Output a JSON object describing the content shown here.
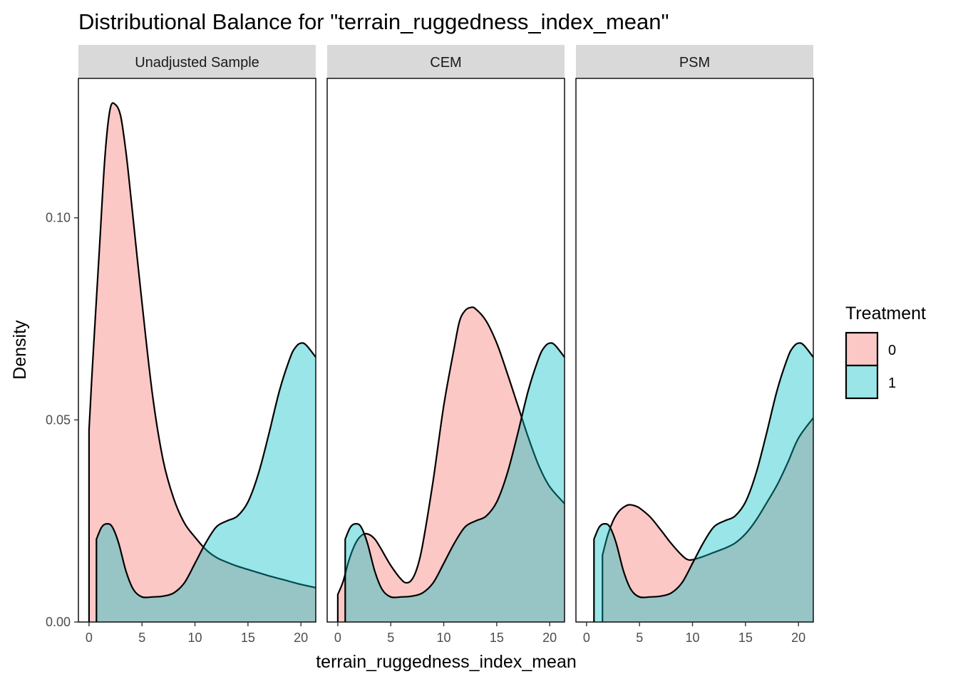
{
  "chart_data": {
    "type": "area",
    "subtype": "density",
    "title": "Distributional Balance for \"terrain_ruggedness_index_mean\"",
    "xlabel": "terrain_ruggedness_index_mean",
    "ylabel": "Density",
    "xlim": [
      -1,
      21.4
    ],
    "ylim": [
      0,
      0.1345
    ],
    "x_ticks": [
      0,
      5,
      10,
      15,
      20
    ],
    "x_tick_labels": [
      "0",
      "5",
      "10",
      "15",
      "20"
    ],
    "y_ticks": [
      0,
      0.05,
      0.1
    ],
    "y_tick_labels": [
      "0.00",
      "0.05",
      "0.10"
    ],
    "grid": false,
    "legend": {
      "title": "Treatment",
      "position": "right",
      "entries": [
        {
          "label": "0",
          "color": "#F8766D"
        },
        {
          "label": "1",
          "color": "#00BFC4"
        }
      ]
    },
    "fill_opacity": 0.4,
    "facets": [
      {
        "label": "Unadjusted Sample",
        "series": [
          {
            "name": "0",
            "color": "#F8766D",
            "x": [
              0,
              0.3,
              0.7,
              1.0,
              1.5,
              2.0,
              2.5,
              3.0,
              3.5,
              4.0,
              5.0,
              6.0,
              7.0,
              8.0,
              9.0,
              10.0,
              11.0,
              12.0,
              13.0,
              14.0,
              15.0,
              16.0,
              17.0,
              18.0,
              19.0,
              20.0,
              21.4
            ],
            "y": [
              0.0475,
              0.062,
              0.08,
              0.093,
              0.115,
              0.127,
              0.128,
              0.125,
              0.116,
              0.104,
              0.079,
              0.056,
              0.04,
              0.0305,
              0.0245,
              0.021,
              0.018,
              0.016,
              0.0148,
              0.0138,
              0.013,
              0.0122,
              0.0114,
              0.0107,
              0.01,
              0.0093,
              0.0085
            ]
          },
          {
            "name": "1",
            "color": "#00BFC4",
            "x": [
              0.7,
              1.2,
              1.7,
              2.2,
              2.8,
              3.5,
              4.2,
              5.0,
              6.0,
              7.0,
              8.0,
              9.0,
              10.0,
              11.0,
              12.0,
              13.0,
              14.0,
              15.0,
              16.0,
              17.0,
              18.0,
              19.0,
              19.5,
              20.0,
              20.5,
              21.4
            ],
            "y": [
              0.0205,
              0.0235,
              0.0243,
              0.0235,
              0.0195,
              0.0125,
              0.008,
              0.0062,
              0.0062,
              0.0064,
              0.0072,
              0.0097,
              0.0145,
              0.0195,
              0.0235,
              0.025,
              0.0262,
              0.0297,
              0.0368,
              0.0468,
              0.0575,
              0.0655,
              0.068,
              0.069,
              0.0685,
              0.0655
            ]
          }
        ]
      },
      {
        "label": "CEM",
        "series": [
          {
            "name": "0",
            "color": "#F8766D",
            "x": [
              0,
              0.5,
              1.0,
              1.5,
              2.0,
              2.5,
              3.0,
              3.5,
              4.0,
              5.0,
              6.0,
              6.5,
              7.0,
              7.5,
              8.0,
              9.0,
              10.0,
              11.0,
              11.5,
              12.0,
              12.5,
              13.0,
              14.0,
              15.0,
              16.0,
              17.0,
              18.0,
              19.0,
              20.0,
              21.4
            ],
            "y": [
              0.0068,
              0.01,
              0.0148,
              0.0185,
              0.0208,
              0.0218,
              0.0216,
              0.0205,
              0.0185,
              0.014,
              0.0105,
              0.0097,
              0.0105,
              0.0135,
              0.019,
              0.035,
              0.0535,
              0.068,
              0.0745,
              0.077,
              0.0778,
              0.0775,
              0.0745,
              0.069,
              0.0615,
              0.0535,
              0.0455,
              0.0385,
              0.0335,
              0.0293
            ]
          },
          {
            "name": "1",
            "color": "#00BFC4",
            "x": [
              0.7,
              1.2,
              1.7,
              2.2,
              2.8,
              3.5,
              4.2,
              5.0,
              6.0,
              7.0,
              8.0,
              9.0,
              10.0,
              11.0,
              12.0,
              13.0,
              14.0,
              15.0,
              16.0,
              17.0,
              18.0,
              19.0,
              19.5,
              20.0,
              20.5,
              21.4
            ],
            "y": [
              0.0205,
              0.0235,
              0.0243,
              0.0235,
              0.0195,
              0.0125,
              0.008,
              0.0062,
              0.0062,
              0.0064,
              0.0072,
              0.0097,
              0.0145,
              0.0195,
              0.0235,
              0.025,
              0.0262,
              0.0297,
              0.0368,
              0.0468,
              0.0575,
              0.0655,
              0.068,
              0.069,
              0.0685,
              0.0655
            ]
          }
        ]
      },
      {
        "label": "PSM",
        "series": [
          {
            "name": "0",
            "color": "#F8766D",
            "x": [
              1.5,
              2.0,
              2.5,
              3.0,
              3.5,
              4.0,
              4.5,
              5.0,
              6.0,
              7.0,
              8.0,
              9.0,
              9.5,
              10.0,
              11.0,
              12.0,
              13.0,
              14.0,
              15.0,
              16.0,
              17.0,
              18.0,
              19.0,
              20.0,
              21.4
            ],
            "y": [
              0.0165,
              0.0215,
              0.025,
              0.0272,
              0.0284,
              0.029,
              0.0288,
              0.0282,
              0.026,
              0.0228,
              0.0194,
              0.0165,
              0.0155,
              0.0154,
              0.0162,
              0.0172,
              0.0182,
              0.0195,
              0.0218,
              0.0252,
              0.0295,
              0.034,
              0.0395,
              0.0455,
              0.0505
            ]
          },
          {
            "name": "1",
            "color": "#00BFC4",
            "x": [
              0.7,
              1.2,
              1.7,
              2.2,
              2.8,
              3.5,
              4.2,
              5.0,
              6.0,
              7.0,
              8.0,
              9.0,
              10.0,
              11.0,
              12.0,
              13.0,
              14.0,
              15.0,
              16.0,
              17.0,
              18.0,
              19.0,
              19.5,
              20.0,
              20.5,
              21.4
            ],
            "y": [
              0.0205,
              0.0235,
              0.0243,
              0.0235,
              0.0195,
              0.0125,
              0.008,
              0.0062,
              0.0062,
              0.0064,
              0.0072,
              0.0097,
              0.0145,
              0.0195,
              0.0235,
              0.025,
              0.0262,
              0.0297,
              0.0368,
              0.0468,
              0.0575,
              0.0655,
              0.068,
              0.069,
              0.0685,
              0.0655
            ]
          }
        ]
      }
    ]
  }
}
